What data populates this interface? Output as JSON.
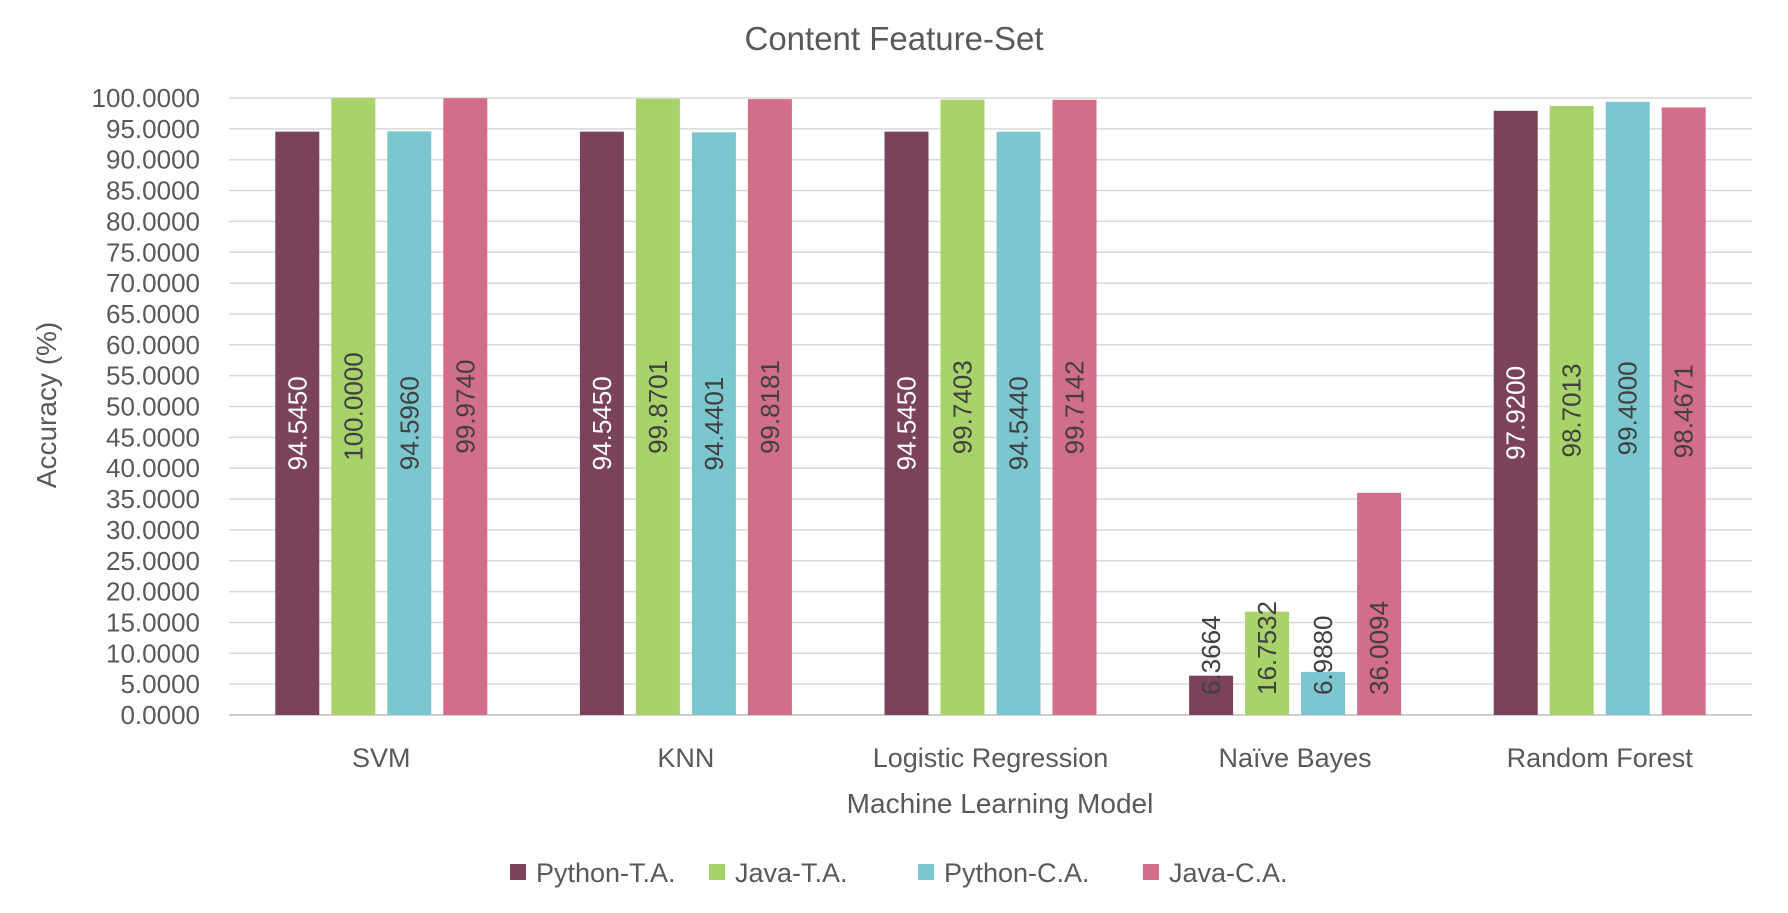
{
  "chart_data": {
    "type": "bar",
    "title": "Content Feature-Set",
    "xlabel": "Machine Learning Model",
    "ylabel": "Accuracy (%)",
    "ylim": [
      0,
      100
    ],
    "ytick_step": 5,
    "ytick_labels": [
      "0.0000",
      "5.0000",
      "10.0000",
      "15.0000",
      "20.0000",
      "25.0000",
      "30.0000",
      "35.0000",
      "40.0000",
      "45.0000",
      "50.0000",
      "55.0000",
      "60.0000",
      "65.0000",
      "70.0000",
      "75.0000",
      "80.0000",
      "85.0000",
      "90.0000",
      "95.0000",
      "100.0000"
    ],
    "grid": true,
    "legend_position": "bottom",
    "categories": [
      "SVM",
      "KNN",
      "Logistic Regression",
      "Naïve Bayes",
      "Random Forest"
    ],
    "series": [
      {
        "name": "Python-T.A.",
        "color": "#7b435b",
        "values": [
          94.545,
          94.545,
          94.545,
          6.3664,
          97.92
        ],
        "labels": [
          "94.5450",
          "94.5450",
          "94.5450",
          "6.3664",
          "97.9200"
        ]
      },
      {
        "name": "Java-T.A.",
        "color": "#a8d26a",
        "values": [
          100.0,
          99.8701,
          99.7403,
          16.7532,
          98.7013
        ],
        "labels": [
          "100.0000",
          "99.8701",
          "99.7403",
          "16.7532",
          "98.7013"
        ]
      },
      {
        "name": "Python-C.A.",
        "color": "#7cc6d0",
        "values": [
          94.596,
          94.4401,
          94.544,
          6.988,
          99.4
        ],
        "labels": [
          "94.5960",
          "94.4401",
          "94.5440",
          "6.9880",
          "99.4000"
        ]
      },
      {
        "name": "Java-C.A.",
        "color": "#d36e8a",
        "values": [
          99.974,
          99.8181,
          99.7142,
          36.0094,
          98.4671
        ],
        "labels": [
          "99.9740",
          "99.8181",
          "99.7142",
          "36.0094",
          "98.4671"
        ]
      }
    ]
  }
}
